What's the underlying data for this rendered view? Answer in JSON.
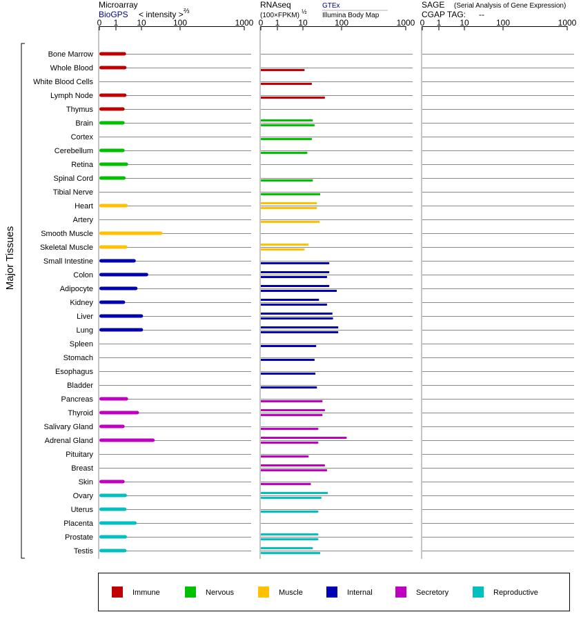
{
  "panels": {
    "microarray": {
      "title": "Microarray",
      "source": "BioGPS",
      "unit": "< intensity >",
      "unit_exp": "⅔",
      "ticks": [
        "0",
        "1",
        "10",
        "100",
        "1000"
      ]
    },
    "rnaseq": {
      "title": "RNAseq",
      "unit": "(100×FPKM)",
      "unit_exp": "½",
      "source1": "GTEx",
      "source2": "Illumina Body Map",
      "ticks": [
        "0",
        "1",
        "10",
        "100",
        "1000"
      ]
    },
    "sage": {
      "title": "SAGE",
      "subtitle": "(Serial Analysis of Gene Expression)",
      "cgap": "CGAP TAG:",
      "cgap_value": "--",
      "ticks": [
        "0",
        "1",
        "10",
        "100",
        "1000"
      ]
    }
  },
  "ylabel": "Major Tissues",
  "legend": [
    {
      "label": "Immune",
      "color": "#c00000"
    },
    {
      "label": "Nervous",
      "color": "#00c000"
    },
    {
      "label": "Muscle",
      "color": "#ffc000"
    },
    {
      "label": "Internal",
      "color": "#0000b0"
    },
    {
      "label": "Secretory",
      "color": "#c000c0"
    },
    {
      "label": "Reproductive",
      "color": "#00c0c0"
    }
  ],
  "chart_data": {
    "type": "bar",
    "x_scale": "ticks at 0, 1, 10, 100, 1000",
    "series_panels": [
      "Microarray (BioGPS)",
      "RNAseq GTEx",
      "RNAseq Illumina Body Map",
      "SAGE"
    ],
    "categories": [
      {
        "tissue": "Bone Marrow",
        "group": "Immune",
        "microarray": 2.5,
        "gtex": null,
        "ibm": null,
        "sage": null
      },
      {
        "tissue": "Whole Blood",
        "group": "Immune",
        "microarray": 2.6,
        "gtex": null,
        "ibm": 11,
        "sage": null
      },
      {
        "tissue": "White Blood Cells",
        "group": "Immune",
        "microarray": null,
        "gtex": null,
        "ibm": 17,
        "sage": null
      },
      {
        "tissue": "Lymph Node",
        "group": "Immune",
        "microarray": 2.6,
        "gtex": null,
        "ibm": 37,
        "sage": null
      },
      {
        "tissue": "Thymus",
        "group": "Immune",
        "microarray": 2.2,
        "gtex": null,
        "ibm": null,
        "sage": null
      },
      {
        "tissue": "Brain",
        "group": "Nervous",
        "microarray": 2.2,
        "gtex": 18,
        "ibm": 20,
        "sage": null
      },
      {
        "tissue": "Cortex",
        "group": "Nervous",
        "microarray": null,
        "gtex": null,
        "ibm": 17,
        "sage": null
      },
      {
        "tissue": "Cerebellum",
        "group": "Nervous",
        "microarray": 2.2,
        "gtex": null,
        "ibm": 13,
        "sage": null
      },
      {
        "tissue": "Retina",
        "group": "Nervous",
        "microarray": 3.0,
        "gtex": null,
        "ibm": null,
        "sage": null
      },
      {
        "tissue": "Spinal Cord",
        "group": "Nervous",
        "microarray": 2.4,
        "gtex": null,
        "ibm": 18,
        "sage": null
      },
      {
        "tissue": "Tibial Nerve",
        "group": "Nervous",
        "microarray": null,
        "gtex": null,
        "ibm": 28,
        "sage": null
      },
      {
        "tissue": "Heart",
        "group": "Muscle",
        "microarray": 2.9,
        "gtex": 23,
        "ibm": 23,
        "sage": null
      },
      {
        "tissue": "Artery",
        "group": "Muscle",
        "microarray": null,
        "gtex": null,
        "ibm": 27,
        "sage": null
      },
      {
        "tissue": "Smooth Muscle",
        "group": "Muscle",
        "microarray": 35,
        "gtex": null,
        "ibm": null,
        "sage": null
      },
      {
        "tissue": "Skeletal Muscle",
        "group": "Muscle",
        "microarray": 2.8,
        "gtex": 14,
        "ibm": 11,
        "sage": null
      },
      {
        "tissue": "Small Intestine",
        "group": "Internal",
        "microarray": 6.0,
        "gtex": null,
        "ibm": 48,
        "sage": null
      },
      {
        "tissue": "Colon",
        "group": "Internal",
        "microarray": 15,
        "gtex": 48,
        "ibm": 42,
        "sage": null
      },
      {
        "tissue": "Adipocyte",
        "group": "Internal",
        "microarray": 7.0,
        "gtex": 48,
        "ibm": 75,
        "sage": null
      },
      {
        "tissue": "Kidney",
        "group": "Internal",
        "microarray": 2.3,
        "gtex": 26,
        "ibm": 42,
        "sage": null
      },
      {
        "tissue": "Liver",
        "group": "Internal",
        "microarray": 11,
        "gtex": 58,
        "ibm": 60,
        "sage": null
      },
      {
        "tissue": "Lung",
        "group": "Internal",
        "microarray": 11,
        "gtex": 82,
        "ibm": 82,
        "sage": null
      },
      {
        "tissue": "Spleen",
        "group": "Internal",
        "microarray": null,
        "gtex": null,
        "ibm": 22,
        "sage": null
      },
      {
        "tissue": "Stomach",
        "group": "Internal",
        "microarray": null,
        "gtex": null,
        "ibm": 20,
        "sage": null
      },
      {
        "tissue": "Esophagus",
        "group": "Internal",
        "microarray": null,
        "gtex": null,
        "ibm": 21,
        "sage": null
      },
      {
        "tissue": "Bladder",
        "group": "Internal",
        "microarray": null,
        "gtex": null,
        "ibm": 23,
        "sage": null
      },
      {
        "tissue": "Pancreas",
        "group": "Secretory",
        "microarray": 3.0,
        "gtex": null,
        "ibm": 32,
        "sage": null
      },
      {
        "tissue": "Thyroid",
        "group": "Secretory",
        "microarray": 8.0,
        "gtex": 37,
        "ibm": 32,
        "sage": null
      },
      {
        "tissue": "Salivary Gland",
        "group": "Secretory",
        "microarray": 2.2,
        "gtex": null,
        "ibm": 25,
        "sage": null
      },
      {
        "tissue": "Adrenal Gland",
        "group": "Secretory",
        "microarray": 22,
        "gtex": 120,
        "ibm": 25,
        "sage": null
      },
      {
        "tissue": "Pituitary",
        "group": "Secretory",
        "microarray": null,
        "gtex": null,
        "ibm": 14,
        "sage": null
      },
      {
        "tissue": "Breast",
        "group": "Secretory",
        "microarray": null,
        "gtex": 37,
        "ibm": 42,
        "sage": null
      },
      {
        "tissue": "Skin",
        "group": "Secretory",
        "microarray": 2.2,
        "gtex": null,
        "ibm": 16,
        "sage": null
      },
      {
        "tissue": "Ovary",
        "group": "Reproductive",
        "microarray": 2.7,
        "gtex": 44,
        "ibm": 30,
        "sage": null
      },
      {
        "tissue": "Uterus",
        "group": "Reproductive",
        "microarray": 2.6,
        "gtex": null,
        "ibm": 25,
        "sage": null
      },
      {
        "tissue": "Placenta",
        "group": "Reproductive",
        "microarray": 6.5,
        "gtex": null,
        "ibm": null,
        "sage": null
      },
      {
        "tissue": "Prostate",
        "group": "Reproductive",
        "microarray": 2.7,
        "gtex": 25,
        "ibm": 25,
        "sage": null
      },
      {
        "tissue": "Testis",
        "group": "Reproductive",
        "microarray": 2.6,
        "gtex": 18,
        "ibm": 28,
        "sage": null
      }
    ]
  }
}
